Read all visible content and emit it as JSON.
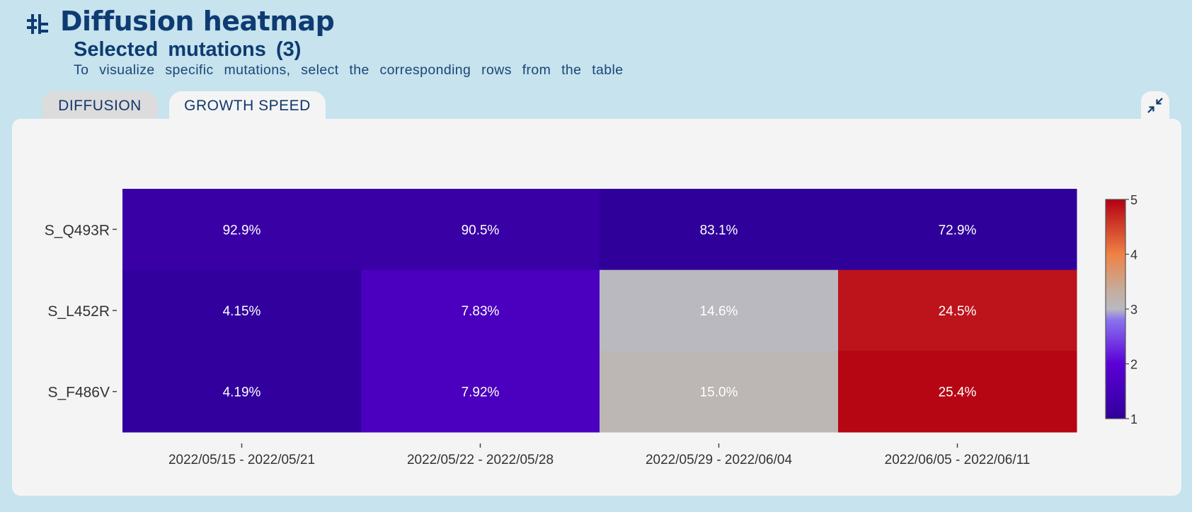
{
  "header": {
    "title": "Diffusion heatmap",
    "subtitle": "Selected mutations (3)",
    "hint": "To visualize specific mutations, select the corresponding rows from the table"
  },
  "tabs": [
    {
      "label": "DIFFUSION",
      "active": false
    },
    {
      "label": "GROWTH SPEED",
      "active": true
    }
  ],
  "icons": {
    "header": "diffusion-tree-icon",
    "collapse": "collapse-arrows-icon"
  },
  "colors": {
    "background": "#c6e3ee",
    "title": "#0e3b72",
    "panel": "#f4f4f4"
  },
  "chart_data": {
    "type": "heatmap",
    "x": [
      "2022/05/15 - 2022/05/21",
      "2022/05/22 - 2022/05/28",
      "2022/05/29 - 2022/06/04",
      "2022/06/05 - 2022/06/11"
    ],
    "y": [
      "S_Q493R",
      "S_L452R",
      "S_F486V"
    ],
    "z": [
      [
        1.2,
        1.2,
        1.0,
        1.0
      ],
      [
        1.05,
        1.6,
        3.0,
        4.85
      ],
      [
        1.05,
        1.6,
        3.1,
        4.95
      ]
    ],
    "text": [
      [
        "92.9%",
        "90.5%",
        "83.1%",
        "72.9%"
      ],
      [
        "4.15%",
        "7.83%",
        "14.6%",
        "24.5%"
      ],
      [
        "4.19%",
        "7.92%",
        "15.0%",
        "25.4%"
      ]
    ],
    "colorbar": {
      "range": [
        1,
        5
      ],
      "ticks": [
        1,
        2,
        3,
        4,
        5
      ]
    },
    "colorscale": [
      [
        0.0,
        "#30009a"
      ],
      [
        0.25,
        "#5b00d6"
      ],
      [
        0.45,
        "#8a73f0"
      ],
      [
        0.5,
        "#b9b9bf"
      ],
      [
        0.58,
        "#c4aea0"
      ],
      [
        0.75,
        "#ef8244"
      ],
      [
        1.0,
        "#b30012"
      ]
    ]
  }
}
